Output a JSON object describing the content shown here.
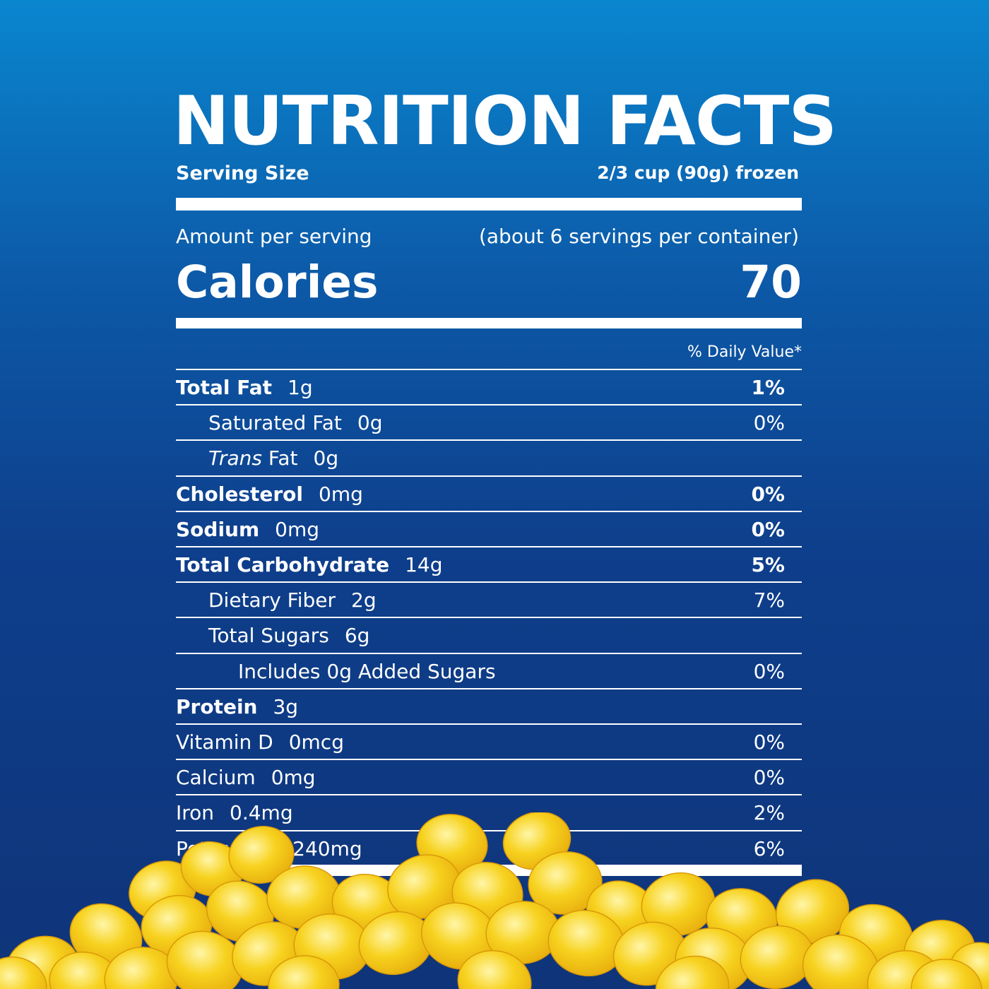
{
  "label": {
    "title": "NUTRITION FACTS",
    "serving_size_label": "Serving Size",
    "serving_size_value": "2/3 cup (90g) frozen",
    "amount_per_serving": "Amount per serving",
    "servings_per_container": "(about 6 servings per container)",
    "calories_label": "Calories",
    "calories_value": "70",
    "daily_value_header": "% Daily Value*"
  },
  "nutrients": [
    {
      "name": "Total Fat",
      "amount": "1g",
      "dv": "1%"
    },
    {
      "name": "Saturated Fat",
      "amount": "0g",
      "dv": "0%"
    },
    {
      "name_italic": "Trans",
      "name": " Fat",
      "amount": "0g",
      "dv": ""
    },
    {
      "name": "Cholesterol",
      "amount": "0mg",
      "dv": "0%"
    },
    {
      "name": "Sodium",
      "amount": "0mg",
      "dv": "0%"
    },
    {
      "name": "Total Carbohydrate",
      "amount": "14g",
      "dv": "5%"
    },
    {
      "name": "Dietary Fiber",
      "amount": "2g",
      "dv": "7%"
    },
    {
      "name": "Total Sugars",
      "amount": "6g",
      "dv": ""
    },
    {
      "name": "Includes 0g Added Sugars",
      "amount": "",
      "dv": "0%"
    },
    {
      "name": "Protein",
      "amount": "3g",
      "dv": ""
    },
    {
      "name": "Vitamin D",
      "amount": "0mcg",
      "dv": "0%"
    },
    {
      "name": "Calcium",
      "amount": "0mg",
      "dv": "0%"
    },
    {
      "name": "Iron",
      "amount": "0.4mg",
      "dv": "2%"
    },
    {
      "name": "Potassium",
      "amount": "240mg",
      "dv": "6%"
    }
  ],
  "colors": {
    "background_top": "#0a86cf",
    "background_bottom": "#0f3479",
    "text": "#ffffff",
    "corn": "#f5cf1c"
  }
}
